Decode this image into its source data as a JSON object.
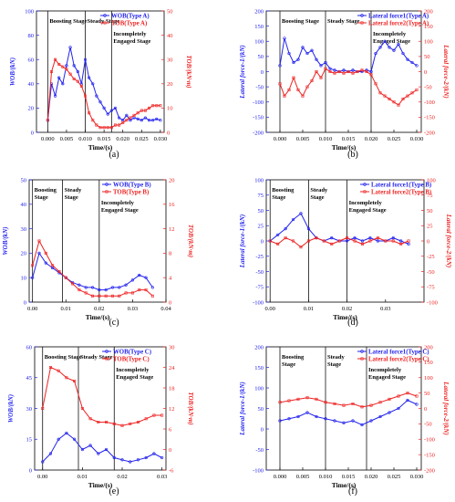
{
  "captions": [
    "(a)",
    "(b)",
    "(c)",
    "(d)",
    "(e)",
    "(f)"
  ],
  "chart_data": [
    {
      "id": "a",
      "type": "line",
      "xlabel": "Time/(s)",
      "ylabel": "WOB/(kN)",
      "y2label": "TOB/(kN·m)",
      "xlim": [
        -0.003,
        0.031
      ],
      "ylim": [
        0,
        100
      ],
      "y2lim": [
        0,
        50
      ],
      "xticks": [
        0.0,
        0.005,
        0.01,
        0.015,
        0.02,
        0.025,
        0.03
      ],
      "xtick_labels": [
        "0.000",
        "0.005",
        "0.010",
        "0.015",
        "0.020",
        "0.025",
        "0.030"
      ],
      "yticks": [
        0,
        20,
        40,
        60,
        80,
        100
      ],
      "y2ticks": [
        0,
        10,
        20,
        30,
        40,
        50
      ],
      "stages": [
        {
          "label": [
            "Boosting Stage"
          ],
          "x": 0.0
        },
        {
          "label": [
            "Steady Stage"
          ],
          "x": 0.01
        },
        {
          "label": [
            "Incompletely",
            "Engaged Stage"
          ],
          "x": 0.017
        }
      ],
      "legend": [
        "WOB(Type A)",
        "TOB(Type A)"
      ],
      "colors": {
        "s1": "#2222ee",
        "s2": "#ee2222"
      },
      "series": [
        {
          "name": "WOB(Type A)",
          "axis": "left",
          "x": [
            0.0,
            0.001,
            0.002,
            0.003,
            0.004,
            0.005,
            0.006,
            0.007,
            0.008,
            0.009,
            0.01,
            0.011,
            0.012,
            0.013,
            0.014,
            0.015,
            0.016,
            0.017,
            0.018,
            0.019,
            0.02,
            0.021,
            0.022,
            0.023,
            0.024,
            0.025,
            0.026,
            0.027,
            0.028,
            0.029,
            0.03
          ],
          "y": [
            10,
            40,
            30,
            45,
            40,
            55,
            70,
            55,
            50,
            40,
            60,
            45,
            40,
            30,
            25,
            20,
            15,
            18,
            20,
            12,
            10,
            14,
            10,
            12,
            11,
            10,
            12,
            10,
            10,
            11,
            10
          ]
        },
        {
          "name": "TOB(Type A)",
          "axis": "right",
          "x": [
            0.0,
            0.001,
            0.002,
            0.003,
            0.004,
            0.005,
            0.006,
            0.007,
            0.008,
            0.009,
            0.01,
            0.011,
            0.012,
            0.013,
            0.014,
            0.015,
            0.016,
            0.017,
            0.018,
            0.019,
            0.02,
            0.021,
            0.022,
            0.023,
            0.024,
            0.025,
            0.026,
            0.027,
            0.028,
            0.029,
            0.03
          ],
          "y": [
            5,
            25,
            30,
            28,
            27,
            26,
            24,
            22,
            21,
            19,
            15,
            8,
            5,
            3,
            2,
            2,
            2,
            2,
            3,
            3,
            4,
            5,
            6,
            7,
            8,
            9,
            9,
            10,
            11,
            11,
            11
          ]
        }
      ]
    },
    {
      "id": "b",
      "type": "line",
      "xlabel": "Time/(s)",
      "ylabel": "Lateral force-1/(kN)",
      "y2label": "Lateral force-2/(kN)",
      "xlim": [
        -0.003,
        0.031
      ],
      "ylim": [
        -200,
        200
      ],
      "y2lim": [
        -200,
        200
      ],
      "xticks": [
        0.0,
        0.005,
        0.01,
        0.015,
        0.02,
        0.025,
        0.03
      ],
      "xtick_labels": [
        "0.000",
        "0.005",
        "0.010",
        "0.015",
        "0.020",
        "0.025",
        "0.030"
      ],
      "yticks": [
        -200,
        -150,
        -100,
        -50,
        0,
        50,
        100,
        150,
        200
      ],
      "y2ticks": [
        -200,
        -150,
        -100,
        -50,
        0,
        50,
        100,
        150,
        200
      ],
      "stages": [
        {
          "label": [
            "Boosting Stage"
          ],
          "x": 0.0
        },
        {
          "label": [
            "Steady Stage"
          ],
          "x": 0.01
        },
        {
          "label": [
            "Incompletely",
            "Engaged Stage"
          ],
          "x": 0.02
        }
      ],
      "legend": [
        "Lateral force1(Type A)",
        "Lateral force2(Type A)"
      ],
      "colors": {
        "s1": "#2222ee",
        "s2": "#ee2222"
      },
      "series": [
        {
          "name": "Lateral force1(Type A)",
          "axis": "left",
          "x": [
            0.0,
            0.001,
            0.002,
            0.003,
            0.004,
            0.005,
            0.006,
            0.007,
            0.008,
            0.009,
            0.01,
            0.011,
            0.012,
            0.013,
            0.014,
            0.015,
            0.016,
            0.017,
            0.018,
            0.019,
            0.02,
            0.021,
            0.022,
            0.023,
            0.024,
            0.025,
            0.026,
            0.027,
            0.028,
            0.029,
            0.03
          ],
          "y": [
            20,
            110,
            60,
            30,
            40,
            80,
            60,
            70,
            40,
            20,
            30,
            10,
            5,
            0,
            5,
            0,
            5,
            0,
            0,
            5,
            0,
            60,
            80,
            100,
            80,
            70,
            90,
            60,
            40,
            30,
            20
          ]
        },
        {
          "name": "Lateral force2(Type A)",
          "axis": "right",
          "x": [
            0.0,
            0.001,
            0.002,
            0.003,
            0.004,
            0.005,
            0.006,
            0.007,
            0.008,
            0.009,
            0.01,
            0.011,
            0.012,
            0.013,
            0.014,
            0.015,
            0.016,
            0.017,
            0.018,
            0.019,
            0.02,
            0.021,
            0.022,
            0.023,
            0.024,
            0.025,
            0.026,
            0.027,
            0.028,
            0.029,
            0.03
          ],
          "y": [
            -40,
            -80,
            -60,
            -20,
            -60,
            -80,
            -50,
            -30,
            0,
            -20,
            10,
            0,
            -5,
            0,
            -5,
            0,
            -5,
            0,
            5,
            0,
            -10,
            -40,
            -70,
            -80,
            -90,
            -100,
            -110,
            -90,
            -80,
            -70,
            -60
          ]
        }
      ]
    },
    {
      "id": "c",
      "type": "line",
      "xlabel": "Time/(s)",
      "ylabel": "WOB/(kN)",
      "y2label": "TOB/(kN·m)",
      "xlim": [
        -0.001,
        0.04
      ],
      "ylim": [
        0,
        50
      ],
      "y2lim": [
        0,
        20
      ],
      "xticks": [
        0.0,
        0.01,
        0.02,
        0.03,
        0.04
      ],
      "xtick_labels": [
        "0.00",
        "0.01",
        "0.02",
        "0.03",
        "0.04"
      ],
      "yticks": [
        0,
        10,
        20,
        30,
        40,
        50
      ],
      "y2ticks": [
        0,
        4,
        8,
        12,
        16,
        20
      ],
      "stages": [
        {
          "label": [
            "Boosting",
            "Stage"
          ],
          "x": 0.0
        },
        {
          "label": [
            "Steady",
            "Stage"
          ],
          "x": 0.009
        },
        {
          "label": [
            "Incompletely",
            "Engaged Stage"
          ],
          "x": 0.02
        }
      ],
      "legend": [
        "WOB(Type B)",
        "TOB(Type B)"
      ],
      "colors": {
        "s1": "#2222ee",
        "s2": "#ee2222"
      },
      "series": [
        {
          "name": "WOB(Type B)",
          "axis": "left",
          "x": [
            0.0,
            0.002,
            0.004,
            0.006,
            0.008,
            0.01,
            0.012,
            0.014,
            0.016,
            0.018,
            0.02,
            0.022,
            0.024,
            0.026,
            0.028,
            0.03,
            0.032,
            0.034,
            0.036
          ],
          "y": [
            10,
            20,
            16,
            14,
            12,
            10,
            8,
            7,
            6,
            6,
            5,
            5,
            6,
            6,
            7,
            9,
            11,
            10,
            6
          ]
        },
        {
          "name": "TOB(Type B)",
          "axis": "right",
          "x": [
            0.0,
            0.002,
            0.004,
            0.006,
            0.008,
            0.01,
            0.012,
            0.014,
            0.016,
            0.018,
            0.02,
            0.022,
            0.024,
            0.026,
            0.028,
            0.03,
            0.032,
            0.034,
            0.036
          ],
          "y": [
            6,
            10,
            8,
            6,
            5,
            4,
            3,
            2,
            1.5,
            1,
            1,
            1,
            1,
            1,
            1.5,
            1.5,
            2,
            2,
            1
          ]
        }
      ]
    },
    {
      "id": "d",
      "type": "line",
      "xlabel": "Time/(s)",
      "ylabel": "Lateral force-1/(kN)",
      "y2label": "Lateral force-2/(kN)",
      "xlim": [
        -0.001,
        0.04
      ],
      "ylim": [
        -100,
        100
      ],
      "y2lim": [
        -100,
        100
      ],
      "xticks": [
        0.0,
        0.01,
        0.02,
        0.03
      ],
      "xtick_labels": [
        "0.00",
        "0.01",
        "0.02",
        "0.03"
      ],
      "yticks": [
        -100,
        -75,
        -50,
        -25,
        0,
        25,
        50,
        75,
        100
      ],
      "y2ticks": [
        -100,
        -75,
        -50,
        -25,
        0,
        25,
        50,
        75,
        100
      ],
      "stages": [
        {
          "label": [
            "Boosting",
            "Stage"
          ],
          "x": 0.0
        },
        {
          "label": [
            "Steady",
            "Stage"
          ],
          "x": 0.01
        },
        {
          "label": [
            "Incompletely",
            "Engaged Stage"
          ],
          "x": 0.02
        }
      ],
      "legend": [
        "Lateral force1(Type B)",
        "Lateral force2(Type B)"
      ],
      "colors": {
        "s1": "#2222ee",
        "s2": "#ee2222"
      },
      "series": [
        {
          "name": "Lateral force1(Type B)",
          "axis": "left",
          "x": [
            0.0,
            0.002,
            0.004,
            0.006,
            0.008,
            0.01,
            0.012,
            0.014,
            0.016,
            0.018,
            0.02,
            0.022,
            0.024,
            0.026,
            0.028,
            0.03,
            0.032,
            0.034,
            0.036
          ],
          "y": [
            0,
            10,
            20,
            35,
            45,
            20,
            5,
            0,
            5,
            0,
            0,
            5,
            0,
            5,
            0,
            0,
            5,
            0,
            -5
          ]
        },
        {
          "name": "Lateral force2(Type B)",
          "axis": "right",
          "x": [
            0.0,
            0.002,
            0.004,
            0.006,
            0.008,
            0.01,
            0.012,
            0.014,
            0.016,
            0.018,
            0.02,
            0.022,
            0.024,
            0.026,
            0.028,
            0.03,
            0.032,
            0.034,
            0.036
          ],
          "y": [
            0,
            -5,
            5,
            0,
            -10,
            0,
            5,
            0,
            -5,
            0,
            5,
            0,
            -5,
            0,
            5,
            0,
            0,
            -5,
            0
          ]
        }
      ]
    },
    {
      "id": "e",
      "type": "line",
      "xlabel": "Time/(s)",
      "ylabel": "WOB/(kN)",
      "y2label": "TOB/(kN·m)",
      "xlim": [
        -0.002,
        0.031
      ],
      "ylim": [
        0,
        60
      ],
      "y2lim": [
        -6,
        30
      ],
      "xticks": [
        0.0,
        0.01,
        0.02,
        0.03
      ],
      "xtick_labels": [
        "0.00",
        "0.01",
        "0.02",
        "0.03"
      ],
      "yticks": [
        0,
        15,
        30,
        45,
        60
      ],
      "y2ticks": [
        -6,
        0,
        6,
        12,
        18,
        24,
        30
      ],
      "stages": [
        {
          "label": [
            "Boosting Stage"
          ],
          "x": 0.0
        },
        {
          "label": [
            "Steady Stage"
          ],
          "x": 0.009
        },
        {
          "label": [
            "Incompletely",
            "Engaged Stage"
          ],
          "x": 0.018
        }
      ],
      "legend": [
        "WOB(Type C)",
        "TOB(Type C)"
      ],
      "colors": {
        "s1": "#2222ee",
        "s2": "#ee2222"
      },
      "series": [
        {
          "name": "WOB(Type C)",
          "axis": "left",
          "x": [
            0.0,
            0.002,
            0.004,
            0.006,
            0.008,
            0.01,
            0.012,
            0.014,
            0.016,
            0.018,
            0.02,
            0.022,
            0.024,
            0.026,
            0.028,
            0.03
          ],
          "y": [
            4,
            8,
            15,
            18,
            15,
            10,
            12,
            8,
            10,
            6,
            5,
            4,
            5,
            6,
            8,
            6
          ]
        },
        {
          "name": "TOB(Type C)",
          "axis": "right",
          "x": [
            0.0,
            0.002,
            0.004,
            0.006,
            0.008,
            0.01,
            0.012,
            0.014,
            0.016,
            0.018,
            0.02,
            0.022,
            0.024,
            0.026,
            0.028,
            0.03
          ],
          "y": [
            12,
            24,
            23,
            21,
            20,
            12,
            9,
            8,
            8,
            7.5,
            7,
            7.5,
            8,
            9,
            10,
            10
          ]
        }
      ]
    },
    {
      "id": "f",
      "type": "line",
      "xlabel": "Time/(s)",
      "ylabel": "Lateral force-1/(kN)",
      "y2label": "Lateral force-2/(kN)",
      "xlim": [
        -0.003,
        0.031
      ],
      "ylim": [
        -100,
        200
      ],
      "y2lim": [
        -200,
        200
      ],
      "xticks": [
        0.0,
        0.005,
        0.01,
        0.015,
        0.02,
        0.025,
        0.03
      ],
      "xtick_labels": [
        "0.000",
        "0.005",
        "0.010",
        "0.015",
        "0.020",
        "0.025",
        "0.030"
      ],
      "yticks": [
        -100,
        -50,
        0,
        50,
        100,
        150,
        200
      ],
      "y2ticks": [
        -200,
        -150,
        -100,
        -50,
        0,
        50,
        100,
        150,
        200
      ],
      "stages": [
        {
          "label": [
            "Boosting",
            "Stage"
          ],
          "x": 0.0
        },
        {
          "label": [
            "Steady",
            "Stage"
          ],
          "x": 0.01
        },
        {
          "label": [
            "Incompletely",
            "Engaged Stage"
          ],
          "x": 0.019
        }
      ],
      "legend": [
        "Lateral force1(Type C)",
        "Lateral force2(Type C)"
      ],
      "colors": {
        "s1": "#2222ee",
        "s2": "#ee2222"
      },
      "series": [
        {
          "name": "Lateral force1(Type C)",
          "axis": "left",
          "x": [
            0.0,
            0.002,
            0.004,
            0.006,
            0.008,
            0.01,
            0.012,
            0.014,
            0.016,
            0.018,
            0.02,
            0.022,
            0.024,
            0.026,
            0.028,
            0.03
          ],
          "y": [
            20,
            25,
            30,
            40,
            30,
            25,
            20,
            15,
            20,
            10,
            20,
            30,
            40,
            50,
            70,
            60
          ]
        },
        {
          "name": "Lateral force2(Type C)",
          "axis": "right",
          "x": [
            0.0,
            0.002,
            0.004,
            0.006,
            0.008,
            0.01,
            0.012,
            0.014,
            0.016,
            0.018,
            0.02,
            0.022,
            0.024,
            0.026,
            0.028,
            0.03
          ],
          "y": [
            20,
            25,
            30,
            35,
            30,
            20,
            15,
            10,
            15,
            5,
            10,
            20,
            30,
            40,
            50,
            40
          ]
        }
      ]
    }
  ]
}
